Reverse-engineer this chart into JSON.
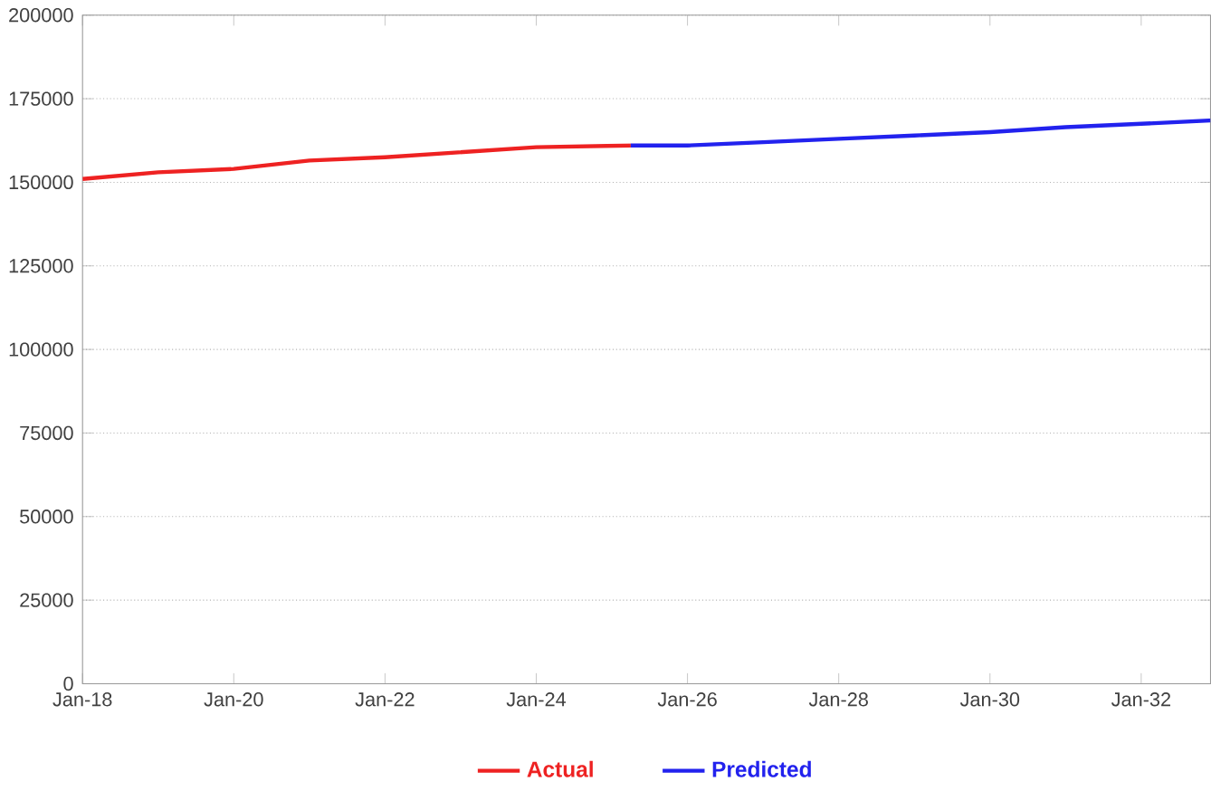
{
  "chart_data": {
    "type": "line",
    "series": [
      {
        "name": "Actual",
        "color": "#ee2222",
        "x": [
          "2018-01",
          "2019-01",
          "2020-01",
          "2021-01",
          "2022-01",
          "2023-01",
          "2024-01",
          "2025-04"
        ],
        "values": [
          151000,
          153000,
          154000,
          156500,
          157500,
          159000,
          160500,
          161000
        ]
      },
      {
        "name": "Predicted",
        "color": "#2222ee",
        "x": [
          "2025-04",
          "2026-01",
          "2027-01",
          "2028-01",
          "2029-01",
          "2030-01",
          "2031-01",
          "2032-01",
          "2032-12"
        ],
        "values": [
          161000,
          161000,
          162000,
          163000,
          164000,
          165000,
          166500,
          167500,
          168500
        ]
      }
    ],
    "xlim": [
      "2018-01",
      "2032-12"
    ],
    "xticks": [
      {
        "value": "2018-01",
        "label": "Jan-18"
      },
      {
        "value": "2020-01",
        "label": "Jan-20"
      },
      {
        "value": "2022-01",
        "label": "Jan-22"
      },
      {
        "value": "2024-01",
        "label": "Jan-24"
      },
      {
        "value": "2026-01",
        "label": "Jan-26"
      },
      {
        "value": "2028-01",
        "label": "Jan-28"
      },
      {
        "value": "2030-01",
        "label": "Jan-30"
      },
      {
        "value": "2032-01",
        "label": "Jan-32"
      }
    ],
    "ylim": [
      0,
      200000
    ],
    "yticks": [
      0,
      25000,
      50000,
      75000,
      100000,
      125000,
      150000,
      175000,
      200000
    ],
    "grid": "y",
    "legend": "bottom",
    "marker": "none",
    "line_style": "solid"
  }
}
